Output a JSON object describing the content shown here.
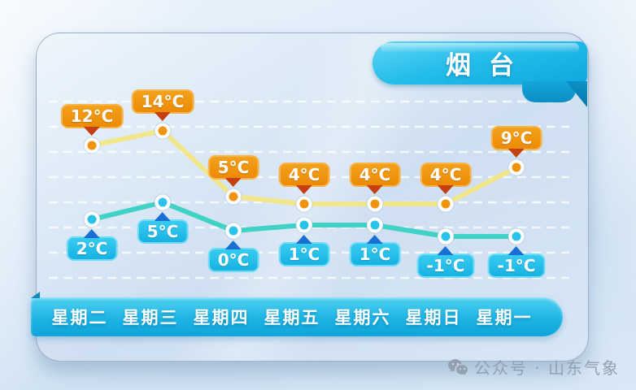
{
  "banner": {
    "city": "烟台"
  },
  "watermark": {
    "text": "公众号 · 山东气象",
    "icon": "wechat-icon",
    "color": "#93a0ae"
  },
  "chart_data": {
    "type": "line",
    "title": "烟台",
    "categories": [
      "星期二",
      "星期三",
      "星期四",
      "星期五",
      "星期六",
      "星期日",
      "星期一"
    ],
    "unit": "°C",
    "grid": "horizontal-dashed-white",
    "legend": "none",
    "series": [
      {
        "id": "high-temperature",
        "values": [
          12,
          14,
          5,
          4,
          4,
          4,
          9
        ],
        "labels": [
          "12°C",
          "14°C",
          "5°C",
          "4°C",
          "4°C",
          "4°C",
          "9°C"
        ],
        "label_position": "above",
        "line_color": "#f1e78a",
        "marker_color": "#f0930f",
        "badge_top": "#f3a11b",
        "badge_bottom": "#ec8a06",
        "badge_border": "#f6b44e",
        "arrow_color": "#c63f10"
      },
      {
        "id": "low-temperature",
        "values": [
          2,
          5,
          0,
          1,
          1,
          -1,
          -1
        ],
        "labels": [
          "2°C",
          "5°C",
          "0°C",
          "1°C",
          "1°C",
          "-1°C",
          "-1°C"
        ],
        "label_position": "below",
        "line_color": "#3fd2c5",
        "marker_color": "#29c2ea",
        "badge_top": "#38cbf0",
        "badge_bottom": "#17b2e3",
        "badge_border": "#6edcf6",
        "arrow_color": "#1a70d2"
      }
    ]
  }
}
